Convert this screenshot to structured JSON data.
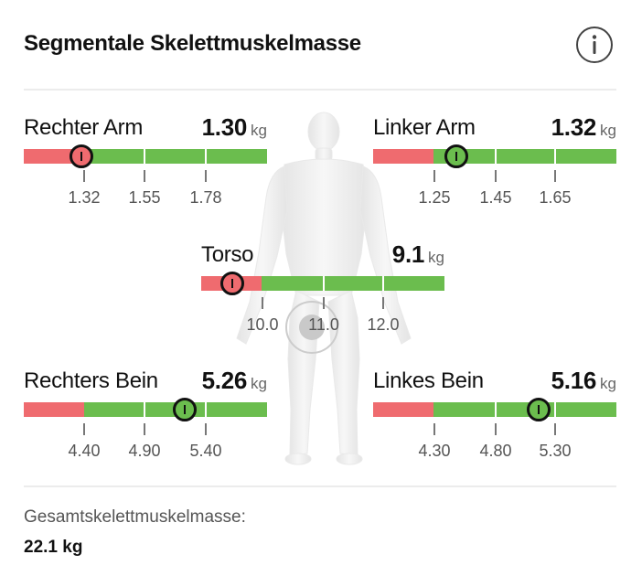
{
  "header": {
    "title": "Segmentale Skelettmuskelmasse"
  },
  "colors": {
    "low": "#ef6b6f",
    "normal": "#6bbd4e",
    "marker_border": "#111111"
  },
  "segments": {
    "right_arm": {
      "label": "Rechter Arm",
      "value": "1.30",
      "unit": "kg",
      "ticks": [
        "1.32",
        "1.55",
        "1.78"
      ],
      "status": "low"
    },
    "left_arm": {
      "label": "Linker Arm",
      "value": "1.32",
      "unit": "kg",
      "ticks": [
        "1.25",
        "1.45",
        "1.65"
      ],
      "status": "normal"
    },
    "torso": {
      "label": "Torso",
      "value": "9.1",
      "unit": "kg",
      "ticks": [
        "10.0",
        "11.0",
        "12.0"
      ],
      "status": "low"
    },
    "right_leg": {
      "label": "Rechters Bein",
      "value": "5.26",
      "unit": "kg",
      "ticks": [
        "4.40",
        "4.90",
        "5.40"
      ],
      "status": "normal"
    },
    "left_leg": {
      "label": "Linkes Bein",
      "value": "5.16",
      "unit": "kg",
      "ticks": [
        "4.30",
        "4.80",
        "5.30"
      ],
      "status": "normal"
    }
  },
  "total": {
    "label": "Gesamtskelettmuskelmasse:",
    "value": "22.1 kg"
  }
}
